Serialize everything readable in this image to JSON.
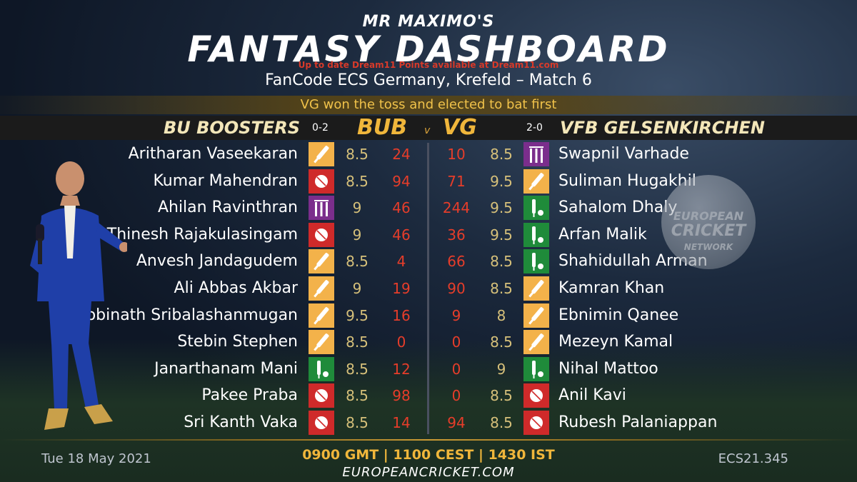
{
  "header": {
    "subtitle": "MR MAXIMO'S",
    "title": "FANTASY DASHBOARD",
    "note": "Up to date Dream11 Points available at Dream11.com",
    "match": "FanCode ECS Germany, Krefeld – Match 6",
    "toss": "VG won the toss and elected to bat first"
  },
  "teams": {
    "left_name": "BU BOOSTERS",
    "left_record": "0-2",
    "left_code": "BUB",
    "vs": "v",
    "right_code": "VG",
    "right_record": "2-0",
    "right_name": "VFB GELSENKIRCHEN"
  },
  "role_colors": {
    "bat": "#f3b24a",
    "bowl": "#cf2a2a",
    "wk": "#7b2e8c",
    "ar": "#1f8b3a"
  },
  "players_left": [
    {
      "name": "Aritharan Vaseekaran",
      "role": "bat",
      "credit": "8.5",
      "points": "24"
    },
    {
      "name": "Kumar Mahendran",
      "role": "bowl",
      "credit": "8.5",
      "points": "94"
    },
    {
      "name": "Ahilan  Ravinthran",
      "role": "wk",
      "credit": "9",
      "points": "46"
    },
    {
      "name": "Thinesh Rajakulasingam",
      "role": "bowl",
      "credit": "9",
      "points": "46"
    },
    {
      "name": "Anvesh Jandagudem",
      "role": "bat",
      "credit": "8.5",
      "points": "4"
    },
    {
      "name": "Ali Abbas Akbar",
      "role": "bat",
      "credit": "9",
      "points": "19"
    },
    {
      "name": "Gobinath Sribalashanmugan",
      "role": "bat",
      "credit": "9.5",
      "points": "16"
    },
    {
      "name": "Stebin Stephen",
      "role": "bat",
      "credit": "8.5",
      "points": "0"
    },
    {
      "name": "Janarthanam  Mani",
      "role": "ar",
      "credit": "8.5",
      "points": "12"
    },
    {
      "name": "Pakee Praba",
      "role": "bowl",
      "credit": "8.5",
      "points": "98"
    },
    {
      "name": "Sri Kanth Vaka",
      "role": "bowl",
      "credit": "8.5",
      "points": "14"
    }
  ],
  "players_right": [
    {
      "name": "Swapnil Varhade",
      "role": "wk",
      "credit": "8.5",
      "points": "10"
    },
    {
      "name": "Suliman Hugakhil",
      "role": "bat",
      "credit": "9.5",
      "points": "71"
    },
    {
      "name": "Sahalom Dhaly",
      "role": "ar",
      "credit": "9.5",
      "points": "244"
    },
    {
      "name": "Arfan Malik",
      "role": "ar",
      "credit": "9.5",
      "points": "36"
    },
    {
      "name": "Shahidullah Arman",
      "role": "ar",
      "credit": "8.5",
      "points": "66"
    },
    {
      "name": "Kamran Khan",
      "role": "bat",
      "credit": "8.5",
      "points": "90"
    },
    {
      "name": "Ebnimin Qanee",
      "role": "bat",
      "credit": "8",
      "points": "9"
    },
    {
      "name": "Mezeyn Kamal",
      "role": "bat",
      "credit": "8.5",
      "points": "0"
    },
    {
      "name": "Nihal Mattoo",
      "role": "ar",
      "credit": "9",
      "points": "0"
    },
    {
      "name": "Anil Kavi",
      "role": "bowl",
      "credit": "8.5",
      "points": "0"
    },
    {
      "name": "Rubesh Palaniappan",
      "role": "bowl",
      "credit": "8.5",
      "points": "94"
    }
  ],
  "logo": {
    "line1": "EUROPEAN",
    "line2": "CRICKET",
    "line3": "NETWORK"
  },
  "footer": {
    "date": "Tue 18 May 2021",
    "times": "0900 GMT | 1100 CEST | 1430 IST",
    "site": "EUROPEANCRICKET.COM",
    "code": "ECS21.345"
  }
}
